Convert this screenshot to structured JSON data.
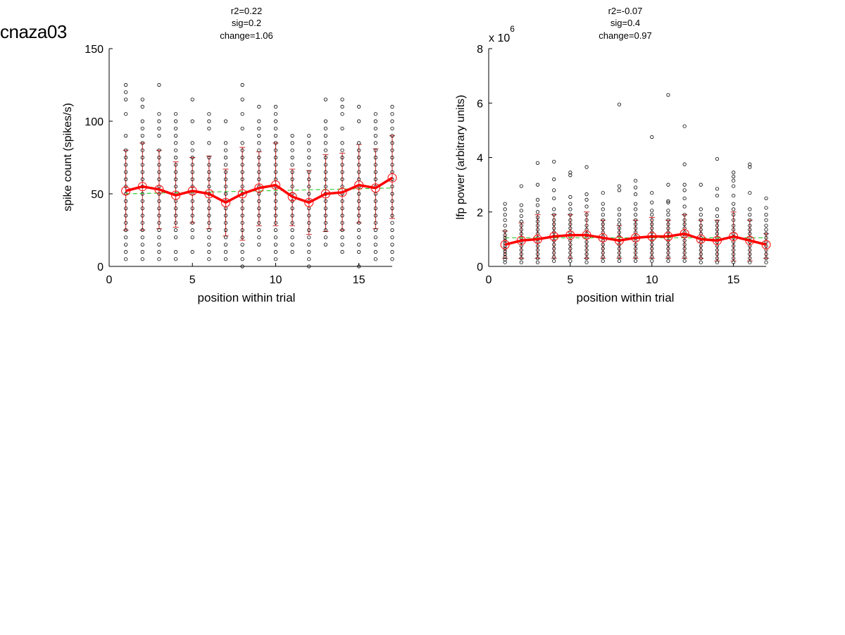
{
  "figure_title": "cnaza03",
  "colors": {
    "scatter": "#000000",
    "mean_line": "#ff0000",
    "error_bars": "#cc2222",
    "fit_line": "#33cc33"
  },
  "chart_data": [
    {
      "type": "scatter",
      "annotations": [
        "r2=0.22",
        "sig=0.2",
        "change=1.06"
      ],
      "xlabel": "position within trial",
      "ylabel": "spike count (spikes/s)",
      "xlim": [
        0,
        17
      ],
      "ylim": [
        0,
        150
      ],
      "xticks": [
        0,
        5,
        10,
        15
      ],
      "yticks": [
        0,
        50,
        100,
        150
      ],
      "exponent_label": "",
      "exponent_power": "",
      "x": [
        1,
        2,
        3,
        4,
        5,
        6,
        7,
        8,
        9,
        10,
        11,
        12,
        13,
        14,
        15,
        16,
        17
      ],
      "mean": [
        52,
        55,
        53,
        49,
        52,
        50,
        44,
        50,
        54,
        56,
        48,
        44,
        50,
        51,
        56,
        54,
        61
      ],
      "err_low": [
        25,
        25,
        26,
        27,
        30,
        26,
        21,
        18,
        28,
        28,
        28,
        22,
        24,
        25,
        30,
        26,
        33
      ],
      "err_high": [
        80,
        85,
        80,
        72,
        75,
        76,
        67,
        82,
        79,
        85,
        67,
        66,
        77,
        78,
        84,
        81,
        90
      ],
      "fit": {
        "x": [
          1,
          17
        ],
        "y": [
          50,
          54
        ]
      },
      "points": [
        [
          5,
          10,
          15,
          20,
          25,
          30,
          35,
          40,
          45,
          50,
          55,
          60,
          65,
          70,
          75,
          80,
          90,
          105,
          115,
          120,
          125
        ],
        [
          5,
          10,
          15,
          20,
          25,
          30,
          35,
          40,
          45,
          50,
          55,
          60,
          65,
          70,
          75,
          80,
          85,
          90,
          95,
          100,
          110,
          115
        ],
        [
          5,
          10,
          15,
          20,
          25,
          30,
          35,
          40,
          45,
          50,
          55,
          60,
          65,
          70,
          75,
          80,
          90,
          95,
          100,
          105,
          125
        ],
        [
          5,
          10,
          20,
          25,
          30,
          35,
          40,
          45,
          50,
          55,
          60,
          65,
          70,
          75,
          80,
          85,
          90,
          95,
          100,
          105
        ],
        [
          10,
          20,
          25,
          30,
          35,
          40,
          45,
          50,
          55,
          60,
          65,
          70,
          75,
          80,
          85,
          100,
          115
        ],
        [
          5,
          10,
          15,
          20,
          25,
          30,
          35,
          40,
          45,
          50,
          55,
          60,
          65,
          70,
          75,
          85,
          95,
          100,
          105
        ],
        [
          5,
          10,
          15,
          20,
          25,
          30,
          35,
          40,
          45,
          50,
          55,
          60,
          65,
          70,
          75,
          80,
          85,
          100
        ],
        [
          0,
          5,
          10,
          15,
          20,
          25,
          30,
          35,
          40,
          45,
          50,
          55,
          60,
          65,
          70,
          75,
          80,
          85,
          95,
          105,
          115,
          125
        ],
        [
          5,
          15,
          20,
          25,
          30,
          35,
          40,
          45,
          50,
          55,
          60,
          65,
          70,
          75,
          80,
          85,
          90,
          95,
          100,
          110
        ],
        [
          5,
          10,
          15,
          20,
          25,
          30,
          35,
          40,
          45,
          50,
          55,
          60,
          65,
          70,
          75,
          80,
          85,
          90,
          95,
          100,
          105,
          110
        ],
        [
          10,
          15,
          20,
          25,
          30,
          35,
          40,
          45,
          50,
          55,
          60,
          65,
          70,
          75,
          80,
          85,
          90
        ],
        [
          0,
          5,
          10,
          15,
          20,
          25,
          30,
          35,
          40,
          45,
          50,
          55,
          60,
          65,
          70,
          75,
          80,
          85,
          90
        ],
        [
          15,
          20,
          25,
          30,
          35,
          40,
          45,
          50,
          55,
          60,
          65,
          70,
          75,
          80,
          85,
          90,
          95,
          100,
          115
        ],
        [
          10,
          15,
          20,
          25,
          30,
          35,
          40,
          45,
          50,
          55,
          60,
          65,
          70,
          75,
          80,
          85,
          95,
          105,
          110,
          115
        ],
        [
          0,
          10,
          15,
          20,
          25,
          30,
          35,
          40,
          45,
          50,
          55,
          60,
          65,
          70,
          75,
          80,
          85,
          100,
          110
        ],
        [
          5,
          10,
          15,
          20,
          25,
          30,
          35,
          40,
          45,
          50,
          55,
          60,
          65,
          70,
          75,
          80,
          85,
          90,
          95,
          100,
          105
        ],
        [
          5,
          10,
          15,
          20,
          25,
          30,
          35,
          40,
          45,
          50,
          55,
          60,
          65,
          70,
          75,
          80,
          85,
          90,
          95,
          100,
          105,
          110
        ]
      ]
    },
    {
      "type": "scatter",
      "annotations": [
        "r2=-0.07",
        "sig=0.4",
        "change=0.97"
      ],
      "xlabel": "position within trial",
      "ylabel": "lfp power (arbitrary units)",
      "xlim": [
        0,
        17
      ],
      "ylim": [
        0,
        8
      ],
      "xticks": [
        0,
        5,
        10,
        15
      ],
      "yticks": [
        0,
        2,
        4,
        6,
        8
      ],
      "exponent_label": "x 10",
      "exponent_power": "6",
      "x": [
        1,
        2,
        3,
        4,
        5,
        6,
        7,
        8,
        9,
        10,
        11,
        12,
        13,
        14,
        15,
        16,
        17
      ],
      "mean": [
        0.8,
        0.95,
        1.0,
        1.1,
        1.15,
        1.15,
        1.05,
        0.95,
        1.05,
        1.1,
        1.1,
        1.2,
        1.0,
        0.95,
        1.1,
        0.95,
        0.8
      ],
      "err_low": [
        0.3,
        0.3,
        0.3,
        0.3,
        0.3,
        0.3,
        0.3,
        0.3,
        0.3,
        0.3,
        0.3,
        0.3,
        0.3,
        0.2,
        0.2,
        0.2,
        0.3
      ],
      "err_high": [
        1.3,
        1.6,
        1.9,
        1.9,
        1.9,
        2.0,
        1.7,
        1.5,
        1.7,
        1.8,
        1.7,
        1.9,
        1.7,
        1.7,
        2.0,
        1.7,
        1.2
      ],
      "fit": {
        "x": [
          1,
          17
        ],
        "y": [
          1.05,
          1.05
        ]
      },
      "points": [
        [
          0.15,
          0.25,
          0.35,
          0.45,
          0.55,
          0.65,
          0.75,
          0.85,
          0.95,
          1.05,
          1.15,
          1.3,
          1.5,
          1.7,
          1.9,
          2.1,
          2.3
        ],
        [
          0.15,
          0.3,
          0.45,
          0.6,
          0.75,
          0.9,
          1.05,
          1.2,
          1.35,
          1.5,
          1.65,
          1.85,
          2.05,
          2.25,
          2.95
        ],
        [
          0.15,
          0.3,
          0.45,
          0.6,
          0.75,
          0.9,
          1.05,
          1.2,
          1.35,
          1.5,
          1.65,
          1.8,
          2.0,
          2.25,
          2.45,
          3.0,
          3.8
        ],
        [
          0.2,
          0.35,
          0.5,
          0.65,
          0.8,
          0.95,
          1.1,
          1.25,
          1.4,
          1.55,
          1.7,
          1.9,
          2.1,
          2.5,
          2.8,
          3.2,
          3.85
        ],
        [
          0.2,
          0.35,
          0.5,
          0.65,
          0.8,
          0.95,
          1.1,
          1.25,
          1.4,
          1.55,
          1.7,
          1.9,
          2.1,
          2.3,
          2.55,
          3.35,
          3.45
        ],
        [
          0.15,
          0.3,
          0.45,
          0.6,
          0.75,
          0.9,
          1.05,
          1.2,
          1.35,
          1.5,
          1.7,
          1.9,
          2.2,
          2.45,
          2.65,
          3.65
        ],
        [
          0.2,
          0.35,
          0.5,
          0.65,
          0.8,
          0.95,
          1.1,
          1.25,
          1.4,
          1.55,
          1.7,
          1.9,
          2.1,
          2.3,
          2.7
        ],
        [
          0.2,
          0.35,
          0.5,
          0.65,
          0.8,
          0.95,
          1.1,
          1.25,
          1.4,
          1.55,
          1.7,
          1.9,
          2.1,
          2.8,
          2.95,
          5.95
        ],
        [
          0.2,
          0.35,
          0.5,
          0.65,
          0.8,
          0.95,
          1.1,
          1.25,
          1.4,
          1.55,
          1.7,
          1.9,
          2.1,
          2.3,
          2.65,
          2.9,
          3.15
        ],
        [
          0.2,
          0.35,
          0.5,
          0.65,
          0.8,
          0.95,
          1.1,
          1.25,
          1.4,
          1.55,
          1.7,
          1.9,
          2.05,
          2.35,
          2.7,
          4.75
        ],
        [
          0.2,
          0.35,
          0.5,
          0.65,
          0.8,
          0.95,
          1.1,
          1.25,
          1.4,
          1.55,
          1.7,
          1.9,
          2.05,
          2.35,
          2.4,
          3.0,
          6.3
        ],
        [
          0.2,
          0.35,
          0.5,
          0.65,
          0.8,
          0.95,
          1.1,
          1.25,
          1.4,
          1.55,
          1.7,
          1.9,
          2.2,
          2.5,
          2.8,
          3.0,
          3.75,
          5.15
        ],
        [
          0.15,
          0.3,
          0.45,
          0.6,
          0.75,
          0.9,
          1.05,
          1.2,
          1.35,
          1.5,
          1.7,
          1.9,
          2.1,
          3.0
        ],
        [
          0.15,
          0.3,
          0.45,
          0.6,
          0.75,
          0.9,
          1.05,
          1.2,
          1.35,
          1.5,
          1.65,
          1.85,
          2.1,
          2.6,
          2.85,
          3.95
        ],
        [
          0.15,
          0.3,
          0.45,
          0.6,
          0.75,
          0.9,
          1.05,
          1.2,
          1.35,
          1.5,
          1.7,
          1.9,
          2.1,
          2.3,
          2.6,
          2.95,
          3.15,
          3.3,
          3.45
        ],
        [
          0.15,
          0.3,
          0.45,
          0.6,
          0.75,
          0.9,
          1.05,
          1.2,
          1.35,
          1.5,
          1.7,
          1.9,
          2.1,
          2.7,
          3.65,
          3.75
        ],
        [
          0.15,
          0.3,
          0.45,
          0.6,
          0.75,
          0.9,
          1.05,
          1.2,
          1.35,
          1.5,
          1.7,
          1.9,
          2.15,
          2.5
        ]
      ]
    }
  ]
}
